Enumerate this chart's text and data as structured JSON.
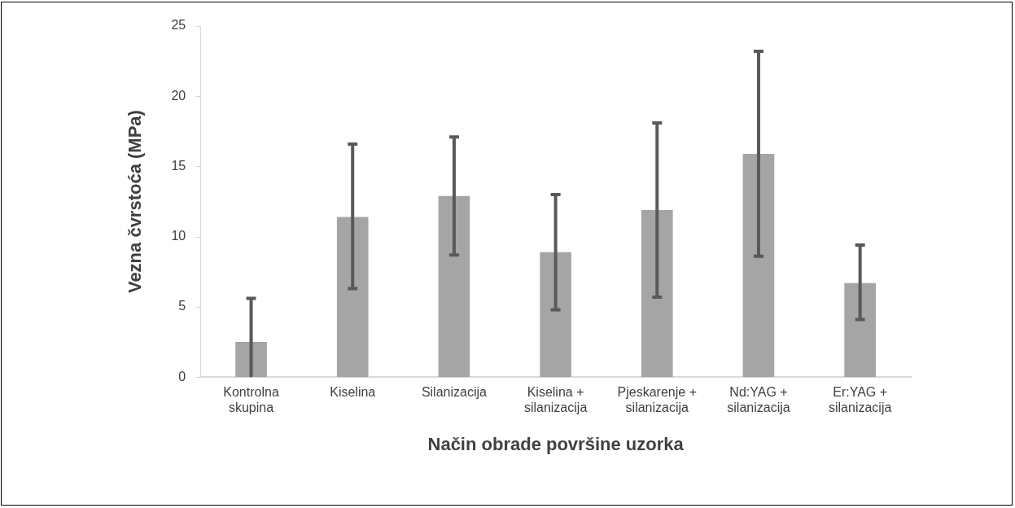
{
  "chart_data": {
    "type": "bar",
    "xlabel": "Način obrade površine uzorka",
    "ylabel": "Vezna čvrstoća (MPa)",
    "categories": [
      "Kontrolna skupina",
      "Kiselina",
      "Silanizacija",
      "Kiselina + silanizacija",
      "Pjeskarenje + silanizacija",
      "Nd:YAG + silanizacija",
      "Er:YAG + silanizacija"
    ],
    "values": [
      2.5,
      11.4,
      12.9,
      8.9,
      11.9,
      15.9,
      6.7
    ],
    "errors": [
      [
        0,
        5.6
      ],
      [
        6.3,
        16.6
      ],
      [
        8.7,
        17.1
      ],
      [
        4.8,
        13.0
      ],
      [
        5.7,
        18.1
      ],
      [
        8.6,
        23.2
      ],
      [
        4.1,
        9.4
      ]
    ],
    "color": "#a5a5a5",
    "ylim": [
      0,
      25
    ],
    "yticks": [
      0,
      5,
      10,
      15,
      20,
      25
    ],
    "grid": false,
    "legend": false
  }
}
